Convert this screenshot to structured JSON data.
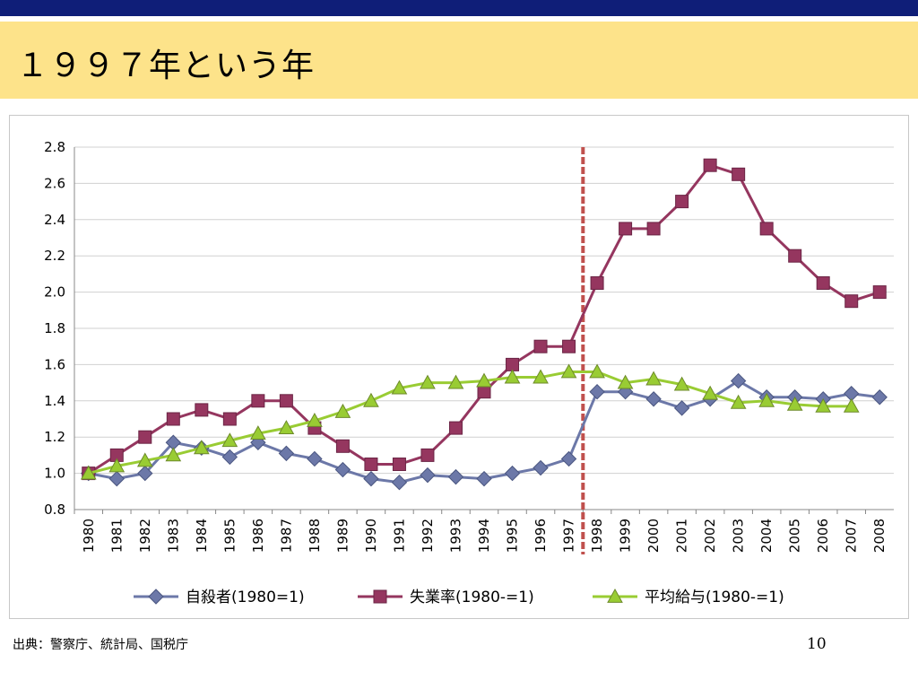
{
  "slide": {
    "title": "１９９７年という年",
    "source": "出典：警察庁、統計局、国税庁",
    "page_number": "10"
  },
  "colors": {
    "top_bar": "#0f1e78",
    "title_band": "#fde38a",
    "divider": "#c0504d"
  },
  "chart_data": {
    "type": "line",
    "title": "",
    "xlabel": "",
    "ylabel": "",
    "ylim": [
      0.8,
      2.8
    ],
    "yticks": [
      "0.8",
      "1.0",
      "1.2",
      "1.4",
      "1.6",
      "1.8",
      "2.0",
      "2.2",
      "2.4",
      "2.6",
      "2.8"
    ],
    "grid": true,
    "legend_position": "bottom",
    "divider_at": "1997",
    "categories": [
      "1980",
      "1981",
      "1982",
      "1983",
      "1984",
      "1985",
      "1986",
      "1987",
      "1988",
      "1989",
      "1990",
      "1991",
      "1992",
      "1993",
      "1994",
      "1995",
      "1996",
      "1997",
      "1998",
      "1999",
      "2000",
      "2001",
      "2002",
      "2003",
      "2004",
      "2005",
      "2006",
      "2007",
      "2008"
    ],
    "series": [
      {
        "name": "自殺者(1980=1)",
        "color": "#6c78a8",
        "marker": "diamond",
        "values": [
          1.0,
          0.97,
          1.0,
          1.17,
          1.14,
          1.09,
          1.17,
          1.11,
          1.08,
          1.02,
          0.97,
          0.95,
          0.99,
          0.98,
          0.97,
          1.0,
          1.03,
          1.08,
          1.45,
          1.45,
          1.41,
          1.36,
          1.41,
          1.51,
          1.42,
          1.42,
          1.41,
          1.44,
          1.42
        ]
      },
      {
        "name": "失業率(1980-=1)",
        "color": "#95365f",
        "marker": "square",
        "values": [
          1.0,
          1.1,
          1.2,
          1.3,
          1.35,
          1.3,
          1.4,
          1.4,
          1.25,
          1.15,
          1.05,
          1.05,
          1.1,
          1.25,
          1.45,
          1.6,
          1.7,
          1.7,
          2.05,
          2.35,
          2.35,
          2.5,
          2.7,
          2.65,
          2.35,
          2.2,
          2.05,
          1.95,
          2.0
        ]
      },
      {
        "name": "平均給与(1980-=1)",
        "color": "#99cc33",
        "marker": "triangle",
        "values": [
          1.0,
          1.04,
          1.07,
          1.1,
          1.14,
          1.18,
          1.22,
          1.25,
          1.29,
          1.34,
          1.4,
          1.47,
          1.5,
          1.5,
          1.51,
          1.53,
          1.53,
          1.56,
          1.56,
          1.5,
          1.52,
          1.49,
          1.44,
          1.39,
          1.4,
          1.38,
          1.37,
          1.37,
          null
        ]
      }
    ]
  }
}
